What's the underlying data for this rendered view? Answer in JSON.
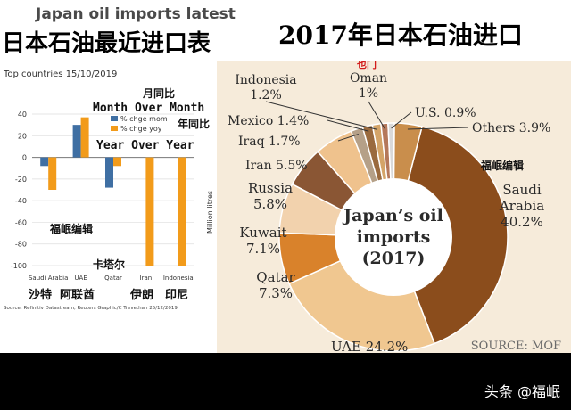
{
  "titles": {
    "left_en": "Japan oil imports latest",
    "left_cn": "日本石油最近进口表",
    "right_cn": "2017年日本石油进口"
  },
  "left_chart": {
    "subtitle": "Top countries 15/10/2019",
    "legend": [
      "% chge mom",
      "% chge yoy"
    ],
    "y_axis_label": "Million litres",
    "source": "Source: Refinitiv Datastream, Reuters Graphic/C Trevethan 25/12/2019",
    "annotations": {
      "mom_cn": "月同比",
      "mom_en": "Month Over Month",
      "yoy_cn": "年同比",
      "yoy_en": "Year Over Year",
      "editor": "福岷编辑",
      "qatar_cn": "卡塔尔"
    },
    "cn_categories": [
      "沙特",
      "阿联酋",
      "伊朗",
      "印尼"
    ]
  },
  "chart_data": [
    {
      "type": "bar",
      "categories": [
        "Saudi Arabia",
        "UAE",
        "Qatar",
        "Iran",
        "Indonesia"
      ],
      "series": [
        {
          "name": "% chge mom",
          "values": [
            -8,
            30,
            -28,
            0,
            0
          ]
        },
        {
          "name": "% chge yoy",
          "values": [
            -30,
            37,
            -8,
            -100,
            -100
          ]
        }
      ],
      "yticks": [
        40,
        20,
        0,
        -20,
        -40,
        -60,
        -80,
        -100
      ],
      "ylim": [
        -100,
        40
      ],
      "colors": {
        "% chge mom": "#3f6fa3",
        "% chge yoy": "#f29b1a"
      }
    },
    {
      "type": "pie",
      "title": "Japan's oil imports (2017)",
      "labels": [
        "Saudi Arabia",
        "UAE",
        "Qatar",
        "Kuwait",
        "Russia",
        "Iran",
        "Iraq",
        "Mexico",
        "Indonesia",
        "Oman",
        "U.S.",
        "Others"
      ],
      "values": [
        40.2,
        24.2,
        7.3,
        7.1,
        5.8,
        5.5,
        1.7,
        1.4,
        1.2,
        1.0,
        0.9,
        3.9
      ],
      "display": [
        "Saudi\nArabia\n40.2%",
        "UAE 24.2%",
        "Qatar\n7.3%",
        "Kuwait\n7.1%",
        "Russia\n5.8%",
        "Iran 5.5%",
        "Iraq 1.7%",
        "Mexico 1.4%",
        "Indonesia\n1.2%",
        "Oman\n1%",
        "U.S. 0.9%",
        "Others 3.9%"
      ],
      "colors": [
        "#8b4d1c",
        "#f0c790",
        "#d9822b",
        "#f2d2ad",
        "#8a5634",
        "#efc28d",
        "#b5a088",
        "#9a6a3e",
        "#d4a468",
        "#b5785a",
        "#d9d9d9",
        "#c98e4c"
      ],
      "source": "SOURCE: MOF",
      "annotations": {
        "oman_cn": "也门",
        "editor": "福岷编辑"
      }
    }
  ],
  "watermark": "头条 @福岷"
}
